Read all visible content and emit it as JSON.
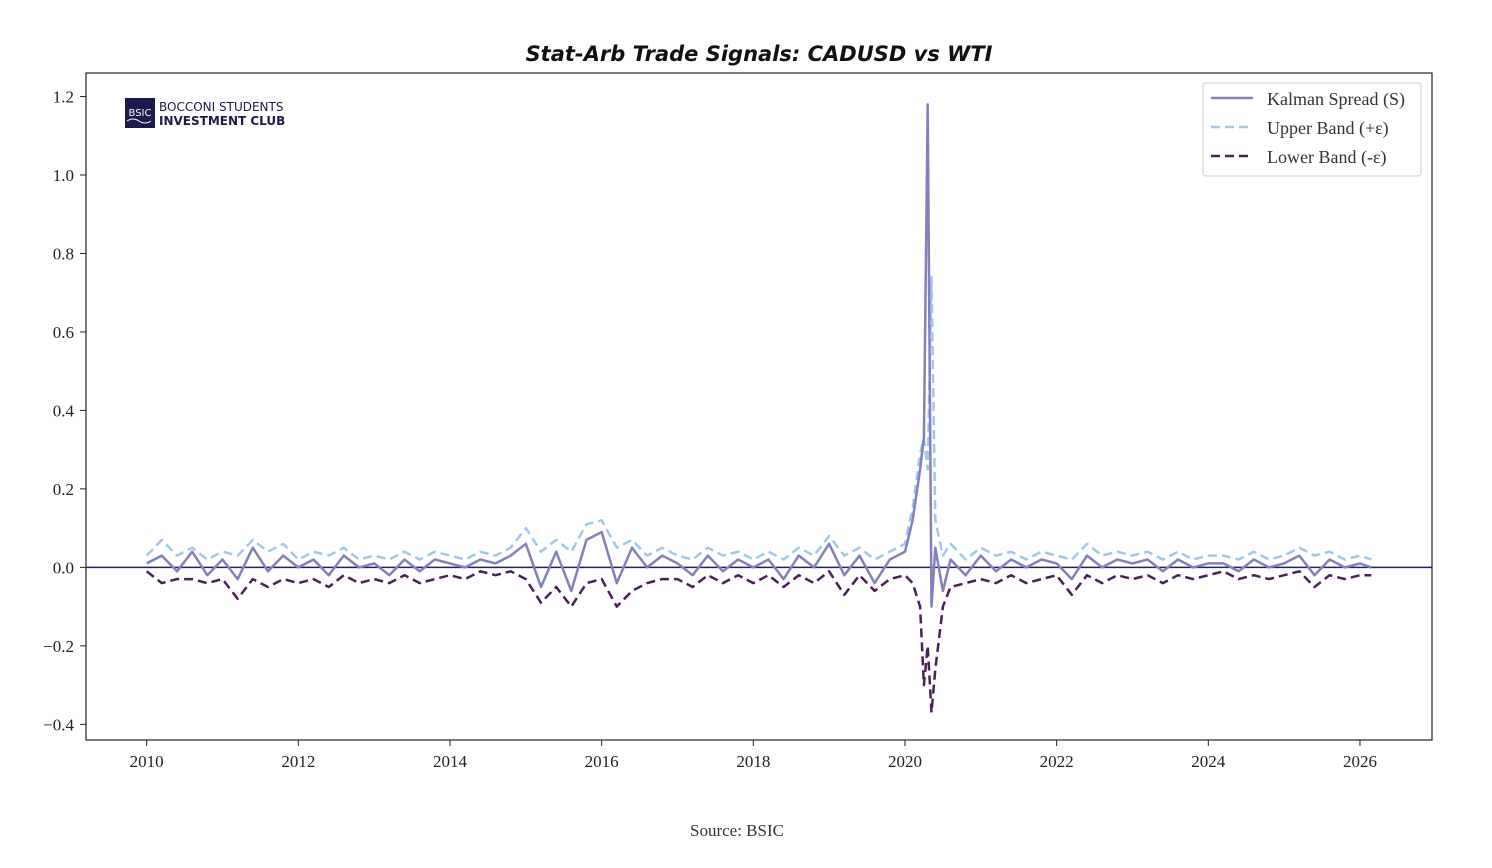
{
  "chart_data": {
    "type": "line",
    "title": "Stat-Arb Trade Signals: CADUSD vs WTI",
    "xlabel": "",
    "ylabel": "",
    "xlim": [
      2009.2,
      2026.95
    ],
    "ylim": [
      -0.44,
      1.26
    ],
    "x_ticks": [
      "2010",
      "2012",
      "2014",
      "2016",
      "2018",
      "2020",
      "2022",
      "2024",
      "2026"
    ],
    "y_ticks": [
      "1.2",
      "1.0",
      "0.8",
      "0.6",
      "0.4",
      "0.2",
      "0.0",
      "−0.2",
      "−0.4"
    ],
    "y_tick_values": [
      1.2,
      1.0,
      0.8,
      0.6,
      0.4,
      0.2,
      0.0,
      -0.2,
      -0.4
    ],
    "x_tick_values": [
      2010,
      2012,
      2014,
      2016,
      2018,
      2020,
      2022,
      2024,
      2026
    ],
    "grid": false,
    "legend_position": "top-right",
    "zero_line": 0.0,
    "colors": {
      "spread": "#8580bd",
      "upper": "#9ec7f2",
      "lower": "#4b1f5c",
      "zero": "#1f1f6e"
    },
    "series": [
      {
        "name": "Kalman Spread (S)",
        "style": "solid",
        "x": [
          2010.0,
          2010.2,
          2010.4,
          2010.6,
          2010.8,
          2011.0,
          2011.2,
          2011.4,
          2011.6,
          2011.8,
          2012.0,
          2012.2,
          2012.4,
          2012.6,
          2012.8,
          2013.0,
          2013.2,
          2013.4,
          2013.6,
          2013.8,
          2014.0,
          2014.2,
          2014.4,
          2014.6,
          2014.8,
          2015.0,
          2015.2,
          2015.4,
          2015.6,
          2015.8,
          2016.0,
          2016.2,
          2016.4,
          2016.6,
          2016.8,
          2017.0,
          2017.2,
          2017.4,
          2017.6,
          2017.8,
          2018.0,
          2018.2,
          2018.4,
          2018.6,
          2018.8,
          2019.0,
          2019.2,
          2019.4,
          2019.6,
          2019.8,
          2020.0,
          2020.1,
          2020.2,
          2020.25,
          2020.3,
          2020.35,
          2020.4,
          2020.5,
          2020.6,
          2020.8,
          2021.0,
          2021.2,
          2021.4,
          2021.6,
          2021.8,
          2022.0,
          2022.2,
          2022.4,
          2022.6,
          2022.8,
          2023.0,
          2023.2,
          2023.4,
          2023.6,
          2023.8,
          2024.0,
          2024.2,
          2024.4,
          2024.6,
          2024.8,
          2025.0,
          2025.2,
          2025.4,
          2025.6,
          2025.8,
          2026.0,
          2026.15
        ],
        "values": [
          0.01,
          0.03,
          -0.01,
          0.04,
          -0.02,
          0.02,
          -0.03,
          0.05,
          -0.01,
          0.03,
          0.0,
          0.02,
          -0.02,
          0.03,
          0.0,
          0.01,
          -0.02,
          0.02,
          -0.01,
          0.02,
          0.01,
          0.0,
          0.02,
          0.01,
          0.03,
          0.06,
          -0.05,
          0.04,
          -0.06,
          0.07,
          0.09,
          -0.04,
          0.05,
          0.0,
          0.03,
          0.01,
          -0.02,
          0.03,
          -0.01,
          0.02,
          0.0,
          0.02,
          -0.03,
          0.03,
          0.0,
          0.06,
          -0.02,
          0.03,
          -0.04,
          0.02,
          0.04,
          0.12,
          0.25,
          0.33,
          1.18,
          -0.1,
          0.05,
          -0.06,
          0.02,
          -0.02,
          0.03,
          -0.01,
          0.02,
          0.0,
          0.02,
          0.01,
          -0.03,
          0.03,
          0.0,
          0.02,
          0.01,
          0.02,
          -0.01,
          0.02,
          0.0,
          0.01,
          0.01,
          -0.01,
          0.02,
          0.0,
          0.01,
          0.03,
          -0.02,
          0.02,
          0.0,
          0.01,
          0.0
        ]
      },
      {
        "name": "Upper Band (+ε)",
        "style": "dashed",
        "x": [
          2010.0,
          2010.2,
          2010.4,
          2010.6,
          2010.8,
          2011.0,
          2011.2,
          2011.4,
          2011.6,
          2011.8,
          2012.0,
          2012.2,
          2012.4,
          2012.6,
          2012.8,
          2013.0,
          2013.2,
          2013.4,
          2013.6,
          2013.8,
          2014.0,
          2014.2,
          2014.4,
          2014.6,
          2014.8,
          2015.0,
          2015.2,
          2015.4,
          2015.6,
          2015.8,
          2016.0,
          2016.2,
          2016.4,
          2016.6,
          2016.8,
          2017.0,
          2017.2,
          2017.4,
          2017.6,
          2017.8,
          2018.0,
          2018.2,
          2018.4,
          2018.6,
          2018.8,
          2019.0,
          2019.2,
          2019.4,
          2019.6,
          2019.8,
          2020.0,
          2020.1,
          2020.2,
          2020.25,
          2020.3,
          2020.35,
          2020.4,
          2020.5,
          2020.6,
          2020.8,
          2021.0,
          2021.2,
          2021.4,
          2021.6,
          2021.8,
          2022.0,
          2022.2,
          2022.4,
          2022.6,
          2022.8,
          2023.0,
          2023.2,
          2023.4,
          2023.6,
          2023.8,
          2024.0,
          2024.2,
          2024.4,
          2024.6,
          2024.8,
          2025.0,
          2025.2,
          2025.4,
          2025.6,
          2025.8,
          2026.0,
          2026.15
        ],
        "values": [
          0.03,
          0.07,
          0.03,
          0.05,
          0.02,
          0.04,
          0.03,
          0.07,
          0.04,
          0.06,
          0.02,
          0.04,
          0.03,
          0.05,
          0.02,
          0.03,
          0.02,
          0.04,
          0.02,
          0.04,
          0.03,
          0.02,
          0.04,
          0.03,
          0.05,
          0.1,
          0.04,
          0.07,
          0.04,
          0.11,
          0.12,
          0.05,
          0.07,
          0.03,
          0.05,
          0.03,
          0.02,
          0.05,
          0.03,
          0.04,
          0.02,
          0.04,
          0.02,
          0.05,
          0.03,
          0.08,
          0.03,
          0.05,
          0.02,
          0.04,
          0.06,
          0.15,
          0.29,
          0.33,
          0.25,
          0.74,
          0.12,
          0.03,
          0.06,
          0.02,
          0.05,
          0.03,
          0.04,
          0.02,
          0.04,
          0.03,
          0.02,
          0.06,
          0.03,
          0.04,
          0.03,
          0.04,
          0.02,
          0.04,
          0.02,
          0.03,
          0.03,
          0.02,
          0.04,
          0.02,
          0.03,
          0.05,
          0.03,
          0.04,
          0.02,
          0.03,
          0.02
        ]
      },
      {
        "name": "Lower Band (-ε)",
        "style": "dashed",
        "x": [
          2010.0,
          2010.2,
          2010.4,
          2010.6,
          2010.8,
          2011.0,
          2011.2,
          2011.4,
          2011.6,
          2011.8,
          2012.0,
          2012.2,
          2012.4,
          2012.6,
          2012.8,
          2013.0,
          2013.2,
          2013.4,
          2013.6,
          2013.8,
          2014.0,
          2014.2,
          2014.4,
          2014.6,
          2014.8,
          2015.0,
          2015.2,
          2015.4,
          2015.6,
          2015.8,
          2016.0,
          2016.2,
          2016.4,
          2016.6,
          2016.8,
          2017.0,
          2017.2,
          2017.4,
          2017.6,
          2017.8,
          2018.0,
          2018.2,
          2018.4,
          2018.6,
          2018.8,
          2019.0,
          2019.2,
          2019.4,
          2019.6,
          2019.8,
          2020.0,
          2020.1,
          2020.2,
          2020.25,
          2020.3,
          2020.35,
          2020.4,
          2020.5,
          2020.6,
          2020.8,
          2021.0,
          2021.2,
          2021.4,
          2021.6,
          2021.8,
          2022.0,
          2022.2,
          2022.4,
          2022.6,
          2022.8,
          2023.0,
          2023.2,
          2023.4,
          2023.6,
          2023.8,
          2024.0,
          2024.2,
          2024.4,
          2024.6,
          2024.8,
          2025.0,
          2025.2,
          2025.4,
          2025.6,
          2025.8,
          2026.0,
          2026.15
        ],
        "values": [
          -0.01,
          -0.04,
          -0.03,
          -0.03,
          -0.04,
          -0.03,
          -0.08,
          -0.03,
          -0.05,
          -0.03,
          -0.04,
          -0.03,
          -0.05,
          -0.02,
          -0.04,
          -0.03,
          -0.04,
          -0.02,
          -0.04,
          -0.03,
          -0.02,
          -0.03,
          -0.01,
          -0.02,
          -0.01,
          -0.03,
          -0.09,
          -0.05,
          -0.1,
          -0.04,
          -0.03,
          -0.1,
          -0.06,
          -0.04,
          -0.03,
          -0.03,
          -0.05,
          -0.02,
          -0.04,
          -0.02,
          -0.04,
          -0.02,
          -0.05,
          -0.02,
          -0.04,
          -0.01,
          -0.07,
          -0.02,
          -0.06,
          -0.03,
          -0.02,
          -0.04,
          -0.1,
          -0.3,
          -0.2,
          -0.37,
          -0.26,
          -0.1,
          -0.05,
          -0.04,
          -0.03,
          -0.04,
          -0.02,
          -0.04,
          -0.03,
          -0.02,
          -0.07,
          -0.02,
          -0.04,
          -0.02,
          -0.03,
          -0.02,
          -0.04,
          -0.02,
          -0.03,
          -0.02,
          -0.01,
          -0.03,
          -0.02,
          -0.03,
          -0.02,
          -0.01,
          -0.05,
          -0.02,
          -0.03,
          -0.02,
          -0.02
        ]
      }
    ]
  },
  "logo": {
    "mark": "BSIC",
    "line1": "BOCCONI STUDENTS",
    "line2": "INVESTMENT CLUB"
  },
  "source": "Source: BSIC"
}
